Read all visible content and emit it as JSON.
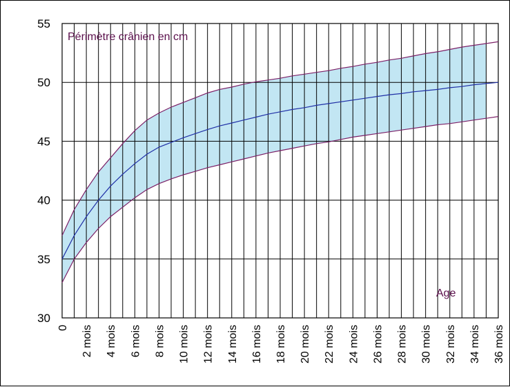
{
  "chart_data": {
    "type": "area",
    "title": "",
    "xlabel": "",
    "ylabel": "",
    "ylim": [
      30,
      55
    ],
    "xlim": [
      0,
      36
    ],
    "grid": true,
    "annotations": {
      "ylabel_text": "Périmètre crânien en cm",
      "xlabel_text": "Age"
    },
    "y_ticks": [
      "30",
      "35",
      "40",
      "45",
      "50",
      "55"
    ],
    "x_ticks": [
      "0",
      "2 mois",
      "4 mois",
      "6 mois",
      "8 mois",
      "10 mois",
      "12 mois",
      "14 mois",
      "16 mois",
      "18 mois",
      "20 mois",
      "22 mois",
      "24 mois",
      "26 mois",
      "28 mois",
      "30 mois",
      "32 mois",
      "34 mois",
      "36 mois"
    ],
    "x": [
      0,
      1,
      2,
      3,
      4,
      5,
      6,
      7,
      8,
      9,
      10,
      11,
      12,
      13,
      14,
      15,
      16,
      17,
      18,
      19,
      20,
      21,
      22,
      23,
      24,
      25,
      26,
      27,
      28,
      29,
      30,
      31,
      32,
      33,
      34,
      35,
      36
    ],
    "series": [
      {
        "role": "upper",
        "values": [
          37.0,
          39.2,
          40.9,
          42.4,
          43.6,
          44.8,
          45.9,
          46.8,
          47.4,
          47.9,
          48.3,
          48.7,
          49.1,
          49.4,
          49.6,
          49.85,
          50.05,
          50.2,
          50.35,
          50.55,
          50.7,
          50.85,
          51.0,
          51.2,
          51.35,
          51.55,
          51.7,
          51.9,
          52.05,
          52.25,
          52.45,
          52.6,
          52.8,
          53.0,
          53.15,
          53.3,
          53.45
        ]
      },
      {
        "role": "median",
        "values": [
          35.0,
          37.0,
          38.6,
          40.0,
          41.2,
          42.2,
          43.1,
          43.9,
          44.5,
          44.9,
          45.3,
          45.65,
          46.0,
          46.3,
          46.55,
          46.8,
          47.05,
          47.3,
          47.5,
          47.7,
          47.85,
          48.05,
          48.2,
          48.35,
          48.5,
          48.65,
          48.8,
          48.95,
          49.05,
          49.2,
          49.3,
          49.4,
          49.55,
          49.65,
          49.8,
          49.9,
          50.0
        ]
      },
      {
        "role": "lower",
        "values": [
          33.0,
          35.0,
          36.4,
          37.6,
          38.6,
          39.4,
          40.2,
          40.9,
          41.4,
          41.8,
          42.15,
          42.45,
          42.75,
          43.0,
          43.25,
          43.5,
          43.75,
          44.0,
          44.2,
          44.4,
          44.6,
          44.8,
          44.95,
          45.15,
          45.35,
          45.5,
          45.65,
          45.8,
          45.95,
          46.1,
          46.25,
          46.4,
          46.5,
          46.65,
          46.8,
          46.95,
          47.1
        ]
      }
    ],
    "colors": {
      "band_fill": "#c2e6f3",
      "bound_line": "#7b1f66",
      "median_line": "#1f2fa6",
      "grid": "#000000"
    }
  }
}
